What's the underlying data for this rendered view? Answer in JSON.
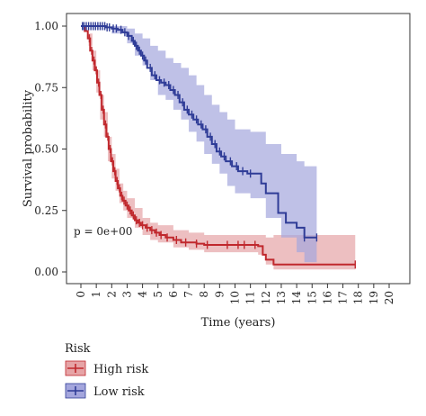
{
  "chart_data": {
    "type": "line",
    "subtype": "kaplan-meier",
    "xlabel": "Time (years)",
    "ylabel": "Survival probability",
    "xlim": [
      0,
      20
    ],
    "ylim": [
      0,
      1
    ],
    "x_ticks": [
      0,
      1,
      2,
      3,
      4,
      5,
      6,
      7,
      8,
      9,
      10,
      11,
      12,
      13,
      14,
      15,
      16,
      17,
      18,
      19,
      20
    ],
    "y_ticks": [
      0.0,
      0.25,
      0.5,
      0.75,
      1.0
    ],
    "y_tick_labels": [
      "0.00",
      "0.25",
      "0.50",
      "0.75",
      "1.00"
    ],
    "annotation": "p = 0e+00",
    "legend": {
      "title": "Risk",
      "position": "bottom-left"
    },
    "series": [
      {
        "name": "High risk",
        "color": "#c0282d",
        "band_color": "#e6a4a6",
        "steps": [
          [
            0,
            1.0
          ],
          [
            0.25,
            0.98
          ],
          [
            0.45,
            0.95
          ],
          [
            0.6,
            0.9
          ],
          [
            0.75,
            0.86
          ],
          [
            0.9,
            0.82
          ],
          [
            1.05,
            0.77
          ],
          [
            1.2,
            0.72
          ],
          [
            1.35,
            0.66
          ],
          [
            1.5,
            0.6
          ],
          [
            1.65,
            0.55
          ],
          [
            1.8,
            0.5
          ],
          [
            1.95,
            0.45
          ],
          [
            2.1,
            0.41
          ],
          [
            2.25,
            0.37
          ],
          [
            2.4,
            0.34
          ],
          [
            2.55,
            0.31
          ],
          [
            2.7,
            0.29
          ],
          [
            2.9,
            0.27
          ],
          [
            3.1,
            0.25
          ],
          [
            3.3,
            0.23
          ],
          [
            3.5,
            0.21
          ],
          [
            3.7,
            0.2
          ],
          [
            3.9,
            0.19
          ],
          [
            4.2,
            0.18
          ],
          [
            4.5,
            0.17
          ],
          [
            4.8,
            0.16
          ],
          [
            5.1,
            0.15
          ],
          [
            5.5,
            0.14
          ],
          [
            6.0,
            0.13
          ],
          [
            6.5,
            0.12
          ],
          [
            7.0,
            0.12
          ],
          [
            7.5,
            0.115
          ],
          [
            8.0,
            0.11
          ],
          [
            9.0,
            0.11
          ],
          [
            11.5,
            0.105
          ],
          [
            11.8,
            0.07
          ],
          [
            12.0,
            0.05
          ],
          [
            12.5,
            0.03
          ],
          [
            17.8,
            0.03
          ]
        ],
        "ci": [
          [
            0,
            1.0,
            1.0
          ],
          [
            0.5,
            0.92,
            0.97
          ],
          [
            0.75,
            0.82,
            0.9
          ],
          [
            1.0,
            0.73,
            0.82
          ],
          [
            1.25,
            0.62,
            0.72
          ],
          [
            1.5,
            0.55,
            0.65
          ],
          [
            1.75,
            0.45,
            0.55
          ],
          [
            2.0,
            0.38,
            0.48
          ],
          [
            2.25,
            0.33,
            0.42
          ],
          [
            2.5,
            0.28,
            0.36
          ],
          [
            2.75,
            0.25,
            0.33
          ],
          [
            3.0,
            0.22,
            0.3
          ],
          [
            3.5,
            0.18,
            0.26
          ],
          [
            4.0,
            0.15,
            0.22
          ],
          [
            4.5,
            0.13,
            0.2
          ],
          [
            5.0,
            0.12,
            0.19
          ],
          [
            6.0,
            0.1,
            0.17
          ],
          [
            7.0,
            0.09,
            0.16
          ],
          [
            8.0,
            0.08,
            0.15
          ],
          [
            10.0,
            0.08,
            0.15
          ],
          [
            11.5,
            0.07,
            0.15
          ],
          [
            12.0,
            0.03,
            0.14
          ],
          [
            12.5,
            0.01,
            0.15
          ],
          [
            17.8,
            0.01,
            0.15
          ]
        ],
        "censor_x": [
          0.55,
          0.7,
          0.85,
          1.0,
          1.15,
          1.3,
          1.45,
          1.6,
          1.75,
          1.9,
          2.05,
          2.2,
          2.35,
          2.5,
          2.65,
          2.8,
          3.0,
          3.2,
          3.4,
          3.6,
          3.8,
          4.0,
          4.3,
          4.6,
          4.9,
          5.2,
          5.6,
          6.2,
          6.8,
          7.5,
          8.2,
          9.5,
          10.2,
          10.6,
          11.3,
          17.8
        ]
      },
      {
        "name": "Low risk",
        "color": "#2f3c97",
        "band_color": "#a4a6dd",
        "steps": [
          [
            0,
            1.0
          ],
          [
            1.6,
            0.995
          ],
          [
            2.0,
            0.99
          ],
          [
            2.4,
            0.985
          ],
          [
            2.7,
            0.975
          ],
          [
            3.0,
            0.96
          ],
          [
            3.3,
            0.94
          ],
          [
            3.5,
            0.92
          ],
          [
            3.7,
            0.9
          ],
          [
            3.9,
            0.88
          ],
          [
            4.1,
            0.86
          ],
          [
            4.3,
            0.83
          ],
          [
            4.6,
            0.8
          ],
          [
            4.9,
            0.78
          ],
          [
            5.2,
            0.77
          ],
          [
            5.5,
            0.76
          ],
          [
            5.8,
            0.74
          ],
          [
            6.1,
            0.72
          ],
          [
            6.4,
            0.69
          ],
          [
            6.7,
            0.66
          ],
          [
            7.0,
            0.64
          ],
          [
            7.3,
            0.62
          ],
          [
            7.6,
            0.6
          ],
          [
            7.9,
            0.58
          ],
          [
            8.2,
            0.55
          ],
          [
            8.5,
            0.52
          ],
          [
            8.8,
            0.49
          ],
          [
            9.1,
            0.47
          ],
          [
            9.4,
            0.45
          ],
          [
            9.8,
            0.43
          ],
          [
            10.2,
            0.41
          ],
          [
            10.8,
            0.4
          ],
          [
            11.7,
            0.36
          ],
          [
            12.0,
            0.32
          ],
          [
            12.8,
            0.24
          ],
          [
            13.3,
            0.2
          ],
          [
            14.0,
            0.18
          ],
          [
            14.5,
            0.14
          ],
          [
            15.3,
            0.14
          ]
        ],
        "ci": [
          [
            0,
            1.0,
            1.0
          ],
          [
            2.0,
            0.97,
            1.0
          ],
          [
            3.0,
            0.93,
            0.99
          ],
          [
            3.5,
            0.88,
            0.97
          ],
          [
            4.0,
            0.84,
            0.95
          ],
          [
            4.5,
            0.78,
            0.92
          ],
          [
            5.0,
            0.72,
            0.9
          ],
          [
            5.5,
            0.7,
            0.87
          ],
          [
            6.0,
            0.66,
            0.85
          ],
          [
            6.5,
            0.62,
            0.83
          ],
          [
            7.0,
            0.57,
            0.8
          ],
          [
            7.5,
            0.53,
            0.76
          ],
          [
            8.0,
            0.48,
            0.72
          ],
          [
            8.5,
            0.44,
            0.68
          ],
          [
            9.0,
            0.4,
            0.65
          ],
          [
            9.5,
            0.35,
            0.62
          ],
          [
            10.0,
            0.32,
            0.58
          ],
          [
            11.0,
            0.3,
            0.57
          ],
          [
            12.0,
            0.22,
            0.52
          ],
          [
            13.0,
            0.14,
            0.48
          ],
          [
            14.0,
            0.08,
            0.45
          ],
          [
            14.5,
            0.04,
            0.43
          ],
          [
            15.3,
            0.04,
            0.43
          ]
        ],
        "censor_x": [
          0.1,
          0.2,
          0.35,
          0.5,
          0.65,
          0.8,
          0.95,
          1.1,
          1.25,
          1.4,
          1.55,
          1.7,
          1.85,
          2.1,
          2.3,
          2.6,
          2.85,
          3.1,
          3.4,
          3.6,
          3.8,
          4.0,
          4.2,
          4.5,
          4.8,
          5.1,
          5.4,
          5.7,
          6.0,
          6.3,
          6.6,
          6.9,
          7.2,
          7.5,
          7.8,
          8.1,
          8.4,
          8.7,
          9.0,
          9.3,
          9.7,
          10.1,
          10.5,
          11.0,
          14.5,
          15.3
        ]
      }
    ]
  }
}
